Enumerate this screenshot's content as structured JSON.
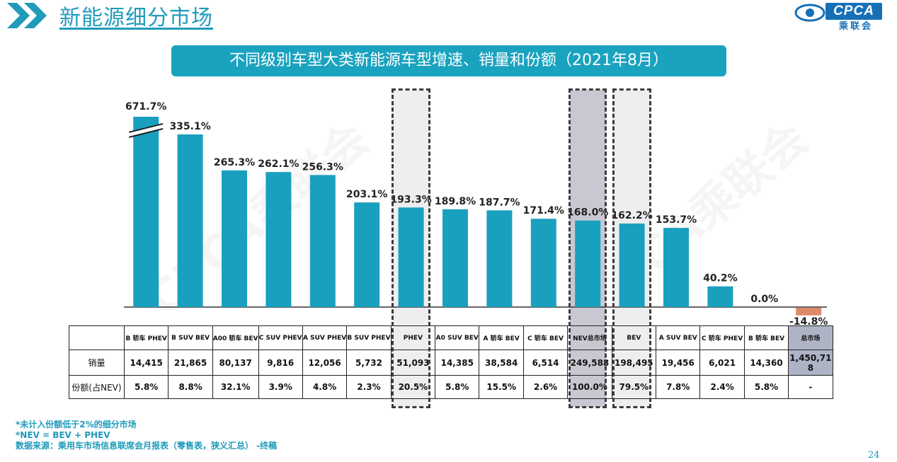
{
  "header": {
    "page_title": "新能源细分市场",
    "logo_text": "CPCA",
    "logo_subtext": "乘联会",
    "logo_mark_text": "ICADA"
  },
  "chart_title": "不同级别车型大类新能源车型增速、销量和份额（2021年8月）",
  "watermark_text": "CPCA乘联会",
  "colors": {
    "bar": "#1aa0bf",
    "negative_bar": "#e08a6a",
    "highlight_light": "#eeeef0",
    "highlight_dark": "#c8c8d2",
    "accent": "#1f9bbb"
  },
  "chart_data": {
    "type": "bar",
    "categories": [
      "B 轿车 PHEV",
      "B SUV BEV",
      "A00 轿车 BEV",
      "C SUV PHEV",
      "A SUV PHEV",
      "B SUV PHEV",
      "PHEV",
      "A0 SUV BEV",
      "A 轿车 BEV",
      "C 轿车 BEV",
      "NEV总市场",
      "BEV",
      "A SUV BEV",
      "C 轿车 PHEV",
      "B 轿车 BEV",
      "总市场"
    ],
    "values": [
      671.7,
      335.1,
      265.3,
      262.1,
      256.3,
      203.1,
      193.3,
      189.8,
      187.7,
      171.4,
      168.0,
      162.2,
      153.7,
      40.2,
      0.0,
      -14.8
    ],
    "value_labels": [
      "671.7%",
      "335.1%",
      "265.3%",
      "262.1%",
      "256.3%",
      "203.1%",
      "193.3%",
      "189.8%",
      "187.7%",
      "171.4%",
      "168.0%",
      "162.2%",
      "153.7%",
      "40.2%",
      "0.0%",
      "-14.8%"
    ],
    "y_axis_break": true,
    "ylim": [
      -20,
      380
    ],
    "grid": false,
    "highlighted_categories": [
      "PHEV",
      "NEV总市场",
      "BEV"
    ],
    "table": {
      "row_labels": [
        "销量",
        "份额(占NEV)"
      ],
      "sales": [
        "14,415",
        "21,865",
        "80,137",
        "9,816",
        "12,056",
        "5,732",
        "51,093",
        "14,385",
        "38,584",
        "6,514",
        "249,588",
        "198,495",
        "19,456",
        "6,021",
        "14,360",
        "1,450,718"
      ],
      "share": [
        "5.8%",
        "8.8%",
        "32.1%",
        "3.9%",
        "4.8%",
        "2.3%",
        "20.5%",
        "5.8%",
        "15.5%",
        "2.6%",
        "100.0%",
        "79.5%",
        "7.8%",
        "2.4%",
        "5.8%",
        "-"
      ]
    }
  },
  "footnotes": [
    "*未计入份额低于2%的细分市场",
    "*NEV = BEV + PHEV",
    "数据来源：乘用车市场信息联席会月报表（零售表，狭义汇总） -终稿"
  ],
  "page_number": "24"
}
